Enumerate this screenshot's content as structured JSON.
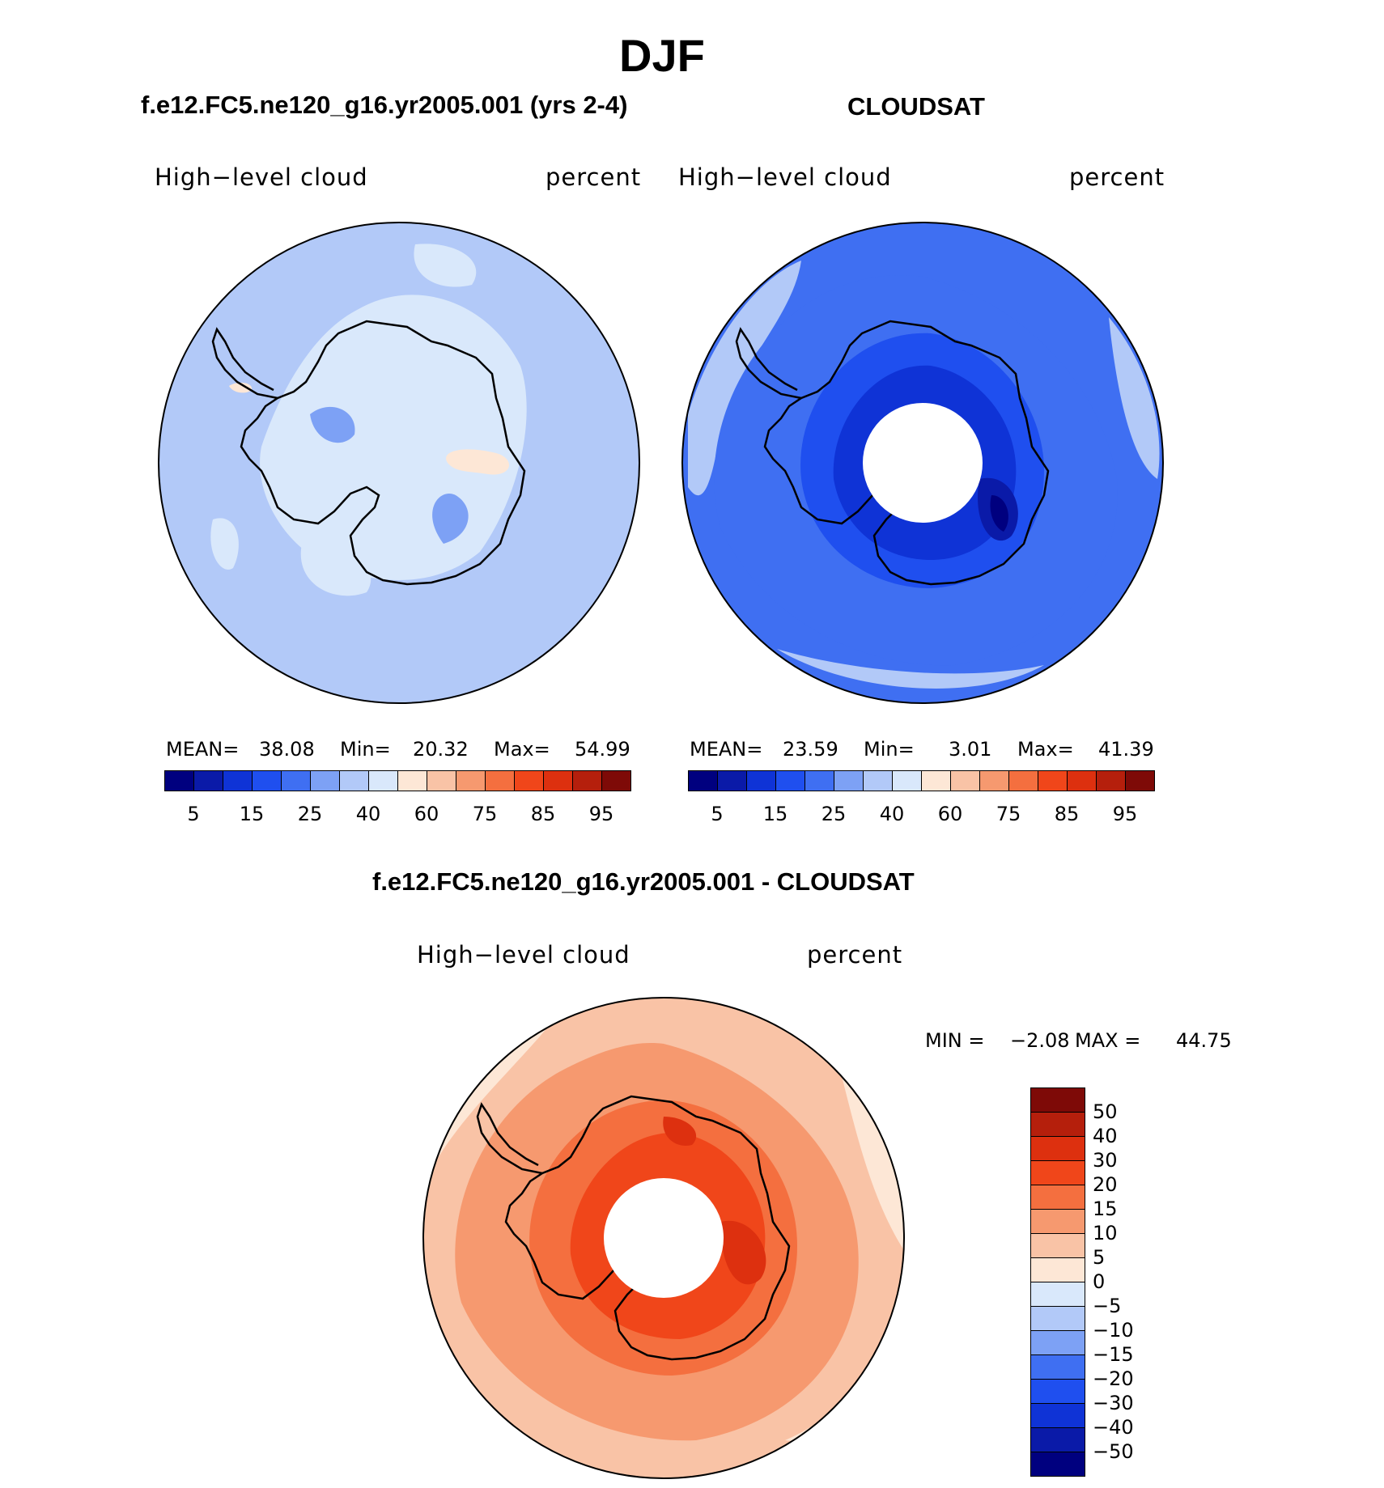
{
  "figure": {
    "title": "DJF"
  },
  "panels": [
    {
      "id": "model",
      "subtitle": "f.e12.FC5.ne120_g16.yr2005.001 (yrs 2-4)",
      "left_label": "High−level cloud",
      "right_label": "percent",
      "stats": {
        "mean_label": "MEAN=",
        "mean": "38.08",
        "min_label": "Min=",
        "min": "20.32",
        "max_label": "Max=",
        "max": "54.99"
      },
      "colorbar_ticks": [
        "5",
        "15",
        "25",
        "40",
        "60",
        "75",
        "85",
        "95"
      ],
      "background_level": 6
    },
    {
      "id": "obs",
      "subtitle": "CLOUDSAT",
      "left_label": "High−level cloud",
      "right_label": "percent",
      "stats": {
        "mean_label": "MEAN=",
        "mean": "23.59",
        "min_label": "Min=",
        "min": "3.01",
        "max_label": "Max=",
        "max": "41.39"
      },
      "colorbar_ticks": [
        "5",
        "15",
        "25",
        "40",
        "60",
        "75",
        "85",
        "95"
      ],
      "background_level": 4
    },
    {
      "id": "diff",
      "subtitle": "f.e12.FC5.ne120_g16.yr2005.001 - CLOUDSAT",
      "left_label": "High−level cloud",
      "right_label": "percent",
      "stats": {
        "min_label": "MIN =",
        "min": "−2.08",
        "max_label": "MAX =",
        "max": "44.75"
      },
      "colorbar_ticks": [
        "50",
        "40",
        "30",
        "20",
        "15",
        "10",
        "5",
        "0",
        "−5",
        "−10",
        "−15",
        "−20",
        "−30",
        "−40",
        "−50"
      ]
    }
  ],
  "colors": {
    "abs_scale": [
      "#00007f",
      "#0a1aa8",
      "#0f33d6",
      "#1f4fef",
      "#3f6ff2",
      "#7da1f5",
      "#b2c9f8",
      "#d9e8fb",
      "#fde7d6",
      "#f9c3a6",
      "#f6996f",
      "#f46f3f",
      "#f0461a",
      "#dd300f",
      "#b51f0c",
      "#7e0a07"
    ],
    "diff_scale_top_to_bottom": [
      "#7e0a07",
      "#b51f0c",
      "#dd300f",
      "#f0461a",
      "#f46f3f",
      "#f6996f",
      "#f9c3a6",
      "#fde7d6",
      "#d9e8fb",
      "#b2c9f8",
      "#7da1f5",
      "#3f6ff2",
      "#1f4fef",
      "#0f33d6",
      "#0a1aa8",
      "#00007f"
    ]
  }
}
